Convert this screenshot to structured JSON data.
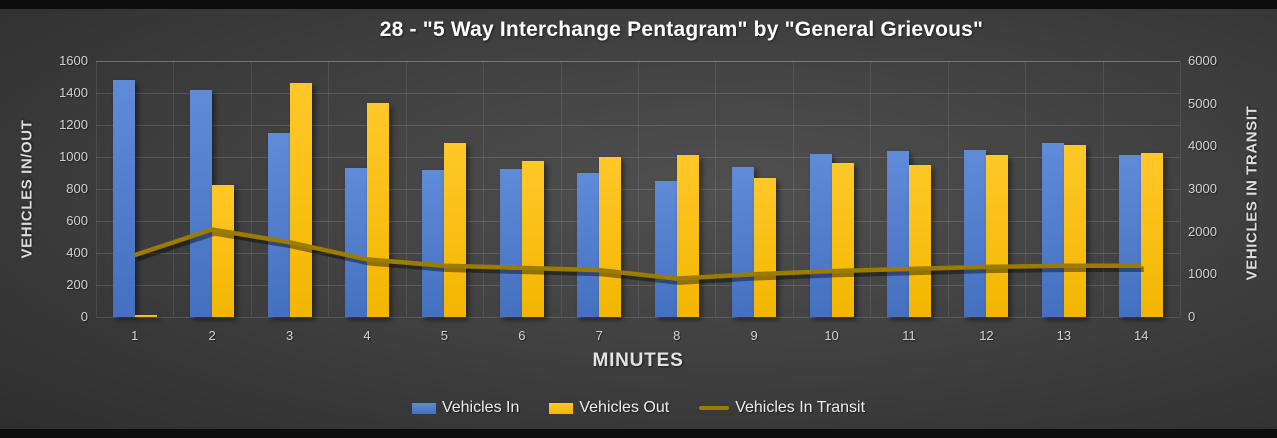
{
  "title": "28 - \"5 Way Interchange Pentagram\" by \"General Grievous\"",
  "colors": {
    "background_center": "#505050",
    "background_edge": "#232323",
    "bar_in": "#4470c0",
    "bar_in_top": "#5f8bd8",
    "bar_out": "#f2b600",
    "bar_out_top": "#ffc829",
    "line_transit": "#9b7c00",
    "title_text": "#ffffff",
    "tick_text": "#d2d2d2",
    "gridline": "rgba(255,255,255,0.13)"
  },
  "legend": [
    {
      "label": "Vehicles In",
      "marker": "bar",
      "color_top": "#5f8bd8",
      "color": "#4470c0"
    },
    {
      "label": "Vehicles Out",
      "marker": "bar",
      "color_top": "#ffc829",
      "color": "#f2b600"
    },
    {
      "label": "Vehicles In Transit",
      "marker": "line",
      "color": "#9b7c00"
    }
  ],
  "chart_data": {
    "type": "bar",
    "subtype": "grouped bars with overlay line on secondary axis",
    "title": "28 - \"5 Way Interchange Pentagram\" by \"General Grievous\"",
    "xlabel": "MINUTES",
    "categories": [
      "1",
      "2",
      "3",
      "4",
      "5",
      "6",
      "7",
      "8",
      "9",
      "10",
      "11",
      "12",
      "13",
      "14"
    ],
    "series": [
      {
        "name": "Vehicles In",
        "type": "bar",
        "axis": "left",
        "values": [
          1480,
          1420,
          1150,
          930,
          920,
          925,
          900,
          850,
          935,
          1020,
          1035,
          1045,
          1090,
          1010
        ]
      },
      {
        "name": "Vehicles Out",
        "type": "bar",
        "axis": "left",
        "values": [
          10,
          825,
          1460,
          1335,
          1090,
          975,
          1000,
          1010,
          870,
          965,
          950,
          1015,
          1075,
          1025
        ]
      },
      {
        "name": "Vehicles In Transit",
        "type": "line",
        "axis": "right",
        "values": [
          1450,
          2050,
          1750,
          1350,
          1200,
          1150,
          1100,
          900,
          1000,
          1075,
          1125,
          1175,
          1200,
          1200
        ]
      }
    ],
    "left_axis": {
      "title": "VEHICLES IN/OUT",
      "min": 0,
      "max": 1600,
      "step": 200,
      "ticks": [
        "0",
        "200",
        "400",
        "600",
        "800",
        "1000",
        "1200",
        "1400",
        "1600"
      ]
    },
    "right_axis": {
      "title": "VEHICLES IN TRANSIT",
      "min": 0,
      "max": 6000,
      "step": 1000,
      "ticks": [
        "0",
        "1000",
        "2000",
        "3000",
        "4000",
        "5000",
        "6000"
      ]
    },
    "grid": true,
    "legend_position": "bottom"
  }
}
